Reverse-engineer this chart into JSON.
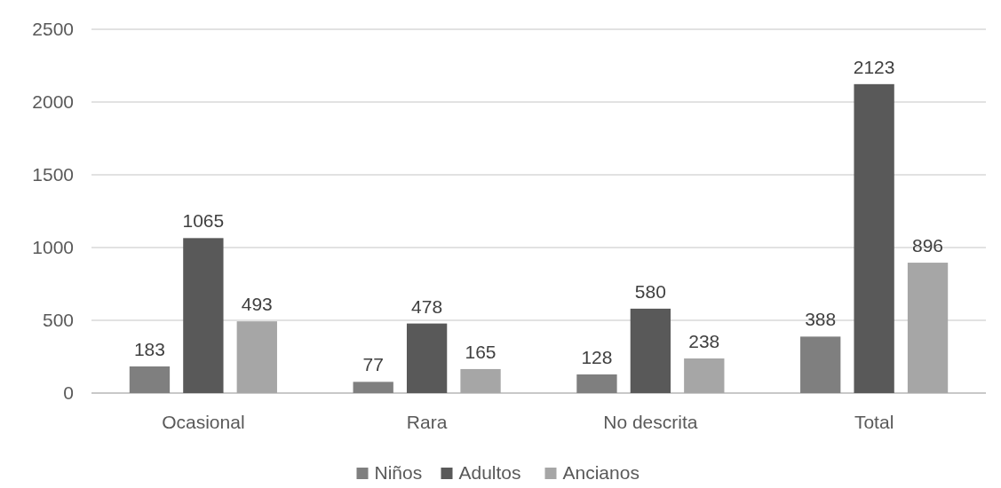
{
  "chart_data": {
    "type": "bar",
    "categories": [
      "Ocasional",
      "Rara",
      "No descrita",
      "Total"
    ],
    "series": [
      {
        "name": "Niños",
        "color": "#7f7f7f",
        "values": [
          183,
          77,
          128,
          388
        ]
      },
      {
        "name": "Adultos",
        "color": "#595959",
        "values": [
          1065,
          478,
          580,
          2123
        ]
      },
      {
        "name": "Ancianos",
        "color": "#a6a6a6",
        "values": [
          493,
          165,
          238,
          896
        ]
      }
    ],
    "ylim": [
      0,
      2500
    ],
    "yticks": [
      0,
      500,
      1000,
      1500,
      2000,
      2500
    ],
    "grid": "y",
    "legend": "bottom",
    "data_labels": true
  }
}
